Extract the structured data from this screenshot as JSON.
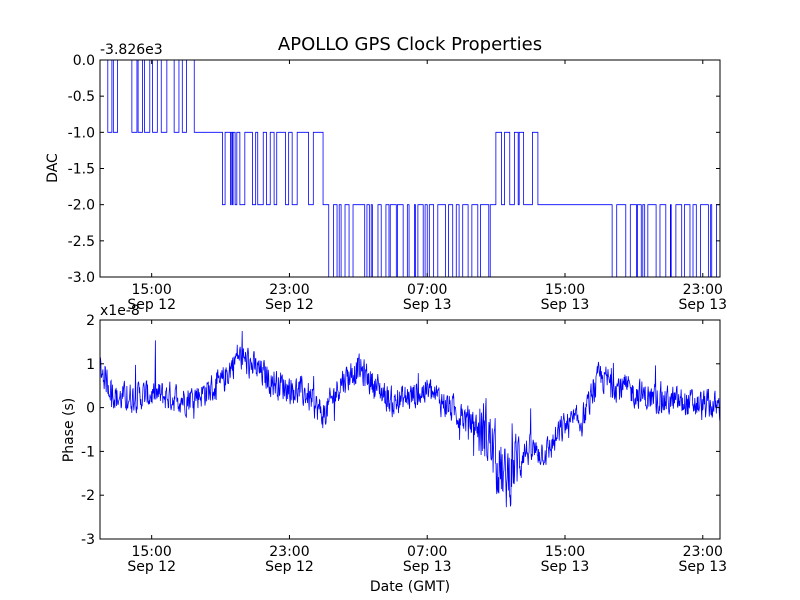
{
  "title": "APOLLO GPS Clock Properties",
  "chart_data": [
    {
      "type": "line",
      "ylabel": "DAC",
      "offset_label": "-3.826e3",
      "x_range": [
        "2012-09-12T12:00",
        "2012-09-14T00:00"
      ],
      "ylim": [
        -3.0,
        0.0
      ],
      "yticks": [
        0.0,
        -0.5,
        -1.0,
        -1.5,
        -2.0,
        -2.5,
        -3.0
      ],
      "ytick_labels": [
        "0.0",
        "-0.5",
        "-1.0",
        "-1.5",
        "-2.0",
        "-2.5",
        "-3.0"
      ],
      "xticks": [
        {
          "time": "15:00",
          "date": "Sep 12"
        },
        {
          "time": "23:00",
          "date": "Sep 12"
        },
        {
          "time": "07:00",
          "date": "Sep 13"
        },
        {
          "time": "15:00",
          "date": "Sep 13"
        },
        {
          "time": "23:00",
          "date": "Sep 13"
        }
      ],
      "color": "#0000ff",
      "levels": [
        {
          "start": "2012-09-12T12:00",
          "end": "2012-09-12T17:40",
          "base": 0.0,
          "alt": -1.0
        },
        {
          "start": "2012-09-12T17:40",
          "end": "2012-09-12T19:00",
          "base": -1.0,
          "alt": -1.0
        },
        {
          "start": "2012-09-12T19:00",
          "end": "2012-09-13T01:00",
          "base": -1.0,
          "alt": -2.0
        },
        {
          "start": "2012-09-13T01:00",
          "end": "2012-09-13T10:40",
          "base": -2.0,
          "alt": -3.0
        },
        {
          "start": "2012-09-13T10:40",
          "end": "2012-09-13T14:00",
          "base": -2.0,
          "alt": -1.0
        },
        {
          "start": "2012-09-13T14:00",
          "end": "2012-09-13T17:20",
          "base": -2.0,
          "alt": -2.0
        },
        {
          "start": "2012-09-13T17:20",
          "end": "2012-09-14T00:00",
          "base": -2.0,
          "alt": -3.0
        }
      ]
    },
    {
      "type": "line",
      "ylabel": "Phase (s)",
      "xlabel": "Date (GMT)",
      "offset_label": "x1e-8",
      "x_range": [
        "2012-09-12T12:00",
        "2012-09-14T00:00"
      ],
      "ylim": [
        -3,
        2
      ],
      "yticks": [
        2,
        1,
        0,
        -1,
        -2,
        -3
      ],
      "ytick_labels": [
        "2",
        "1",
        "0",
        "-1",
        "-2",
        "-3"
      ],
      "xticks": [
        {
          "time": "15:00",
          "date": "Sep 12"
        },
        {
          "time": "23:00",
          "date": "Sep 12"
        },
        {
          "time": "07:00",
          "date": "Sep 13"
        },
        {
          "time": "15:00",
          "date": "Sep 13"
        },
        {
          "time": "23:00",
          "date": "Sep 13"
        }
      ],
      "color": "#0000ff",
      "trend": [
        {
          "t": "2012-09-12T12:00",
          "y": 0.9
        },
        {
          "t": "2012-09-12T13:00",
          "y": 0.2
        },
        {
          "t": "2012-09-12T15:00",
          "y": 0.3
        },
        {
          "t": "2012-09-12T17:00",
          "y": 0.2
        },
        {
          "t": "2012-09-12T19:00",
          "y": 0.5
        },
        {
          "t": "2012-09-12T20:00",
          "y": 1.2
        },
        {
          "t": "2012-09-12T22:00",
          "y": 0.6
        },
        {
          "t": "2012-09-13T00:00",
          "y": 0.3
        },
        {
          "t": "2012-09-13T01:00",
          "y": -0.2
        },
        {
          "t": "2012-09-13T02:00",
          "y": 0.6
        },
        {
          "t": "2012-09-13T03:00",
          "y": 0.9
        },
        {
          "t": "2012-09-13T05:00",
          "y": 0.1
        },
        {
          "t": "2012-09-13T07:00",
          "y": 0.4
        },
        {
          "t": "2012-09-13T09:00",
          "y": -0.2
        },
        {
          "t": "2012-09-13T10:30",
          "y": -0.6
        },
        {
          "t": "2012-09-13T11:30",
          "y": -1.7
        },
        {
          "t": "2012-09-13T12:30",
          "y": -1.0
        },
        {
          "t": "2012-09-13T14:00",
          "y": -1.0
        },
        {
          "t": "2012-09-13T15:00",
          "y": -0.4
        },
        {
          "t": "2012-09-13T16:00",
          "y": -0.3
        },
        {
          "t": "2012-09-13T17:00",
          "y": 0.7
        },
        {
          "t": "2012-09-13T18:00",
          "y": 0.5
        },
        {
          "t": "2012-09-13T20:00",
          "y": 0.2
        },
        {
          "t": "2012-09-13T22:00",
          "y": 0.1
        },
        {
          "t": "2012-09-14T00:00",
          "y": 0.0
        }
      ],
      "noise_amplitude": 0.3
    }
  ]
}
